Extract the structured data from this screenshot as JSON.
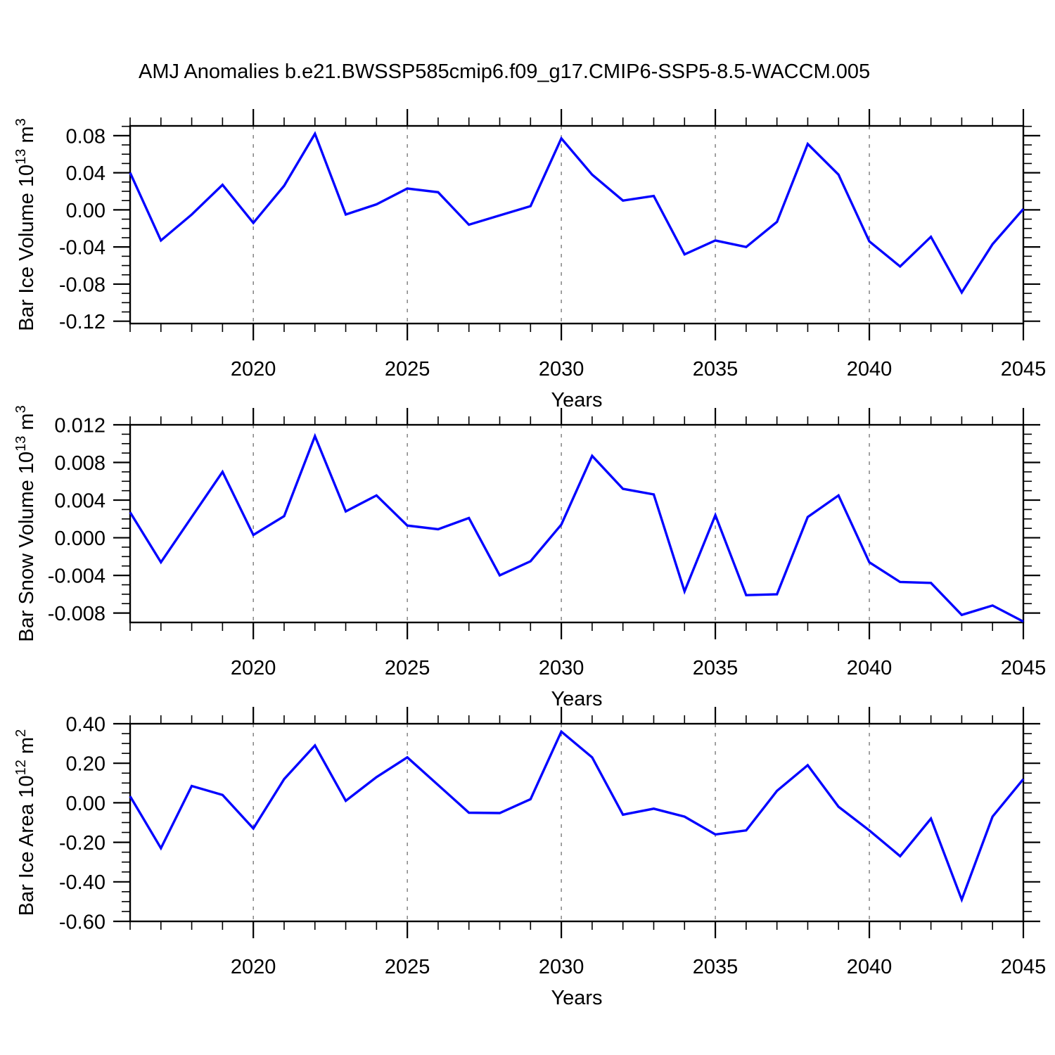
{
  "title": "AMJ Anomalies b.e21.BWSSP585cmip6.f09_g17.CMIP6-SSP5-8.5-WACCM.005",
  "colors": {
    "line": "#0404ff",
    "frame": "#000000",
    "grid": "#707070",
    "background": "#ffffff"
  },
  "chart_data": [
    {
      "type": "line",
      "id": "ice-volume",
      "ylabel_parts": [
        {
          "t": "Bar Ice Volume 10",
          "sup": false
        },
        {
          "t": "13",
          "sup": true
        },
        {
          "t": " m",
          "sup": false
        },
        {
          "t": "3",
          "sup": true
        }
      ],
      "xlabel": "Years",
      "x": [
        2016,
        2017,
        2018,
        2019,
        2020,
        2021,
        2022,
        2023,
        2024,
        2025,
        2026,
        2027,
        2028,
        2029,
        2030,
        2031,
        2032,
        2033,
        2034,
        2035,
        2036,
        2037,
        2038,
        2039,
        2040,
        2041,
        2042,
        2043,
        2044,
        2045
      ],
      "values": [
        0.04,
        -0.033,
        -0.005,
        0.027,
        -0.014,
        0.026,
        0.082,
        -0.005,
        0.006,
        0.023,
        0.019,
        -0.016,
        -0.006,
        0.004,
        0.077,
        0.038,
        0.01,
        0.015,
        -0.048,
        -0.033,
        -0.04,
        -0.013,
        0.071,
        0.038,
        -0.034,
        -0.061,
        -0.029,
        -0.089,
        -0.037,
        0.001
      ],
      "xlim": [
        2016,
        2045
      ],
      "ylim": [
        -0.1225,
        0.0905
      ],
      "xticks": [
        {
          "v": 2020,
          "label": "2020"
        },
        {
          "v": 2025,
          "label": "2025"
        },
        {
          "v": 2030,
          "label": "2030"
        },
        {
          "v": 2035,
          "label": "2035"
        },
        {
          "v": 2040,
          "label": "2040"
        },
        {
          "v": 2045,
          "label": "2045"
        }
      ],
      "xticks_minor_step": 1,
      "yticks": [
        {
          "v": 0.08,
          "label": "0.08"
        },
        {
          "v": 0.04,
          "label": "0.04"
        },
        {
          "v": 0.0,
          "label": "0.00"
        },
        {
          "v": -0.04,
          "label": "-0.04"
        },
        {
          "v": -0.08,
          "label": "-0.08"
        },
        {
          "v": -0.12,
          "label": "-0.12"
        }
      ],
      "yticks_minor": [
        -0.11,
        -0.1,
        -0.09,
        -0.07,
        -0.06,
        -0.05,
        -0.03,
        -0.02,
        -0.01,
        0.01,
        0.02,
        0.03,
        0.05,
        0.06,
        0.07,
        0.09
      ],
      "grid_x": [
        2020,
        2025,
        2030,
        2035,
        2040
      ],
      "grid_on": true,
      "legend_position": "none"
    },
    {
      "type": "line",
      "id": "snow-volume",
      "ylabel_parts": [
        {
          "t": "Bar Snow Volume 10",
          "sup": false
        },
        {
          "t": "13",
          "sup": true
        },
        {
          "t": " m",
          "sup": false
        },
        {
          "t": "3",
          "sup": true
        }
      ],
      "xlabel": "Years",
      "x": [
        2016,
        2017,
        2018,
        2019,
        2020,
        2021,
        2022,
        2023,
        2024,
        2025,
        2026,
        2027,
        2028,
        2029,
        2030,
        2031,
        2032,
        2033,
        2034,
        2035,
        2036,
        2037,
        2038,
        2039,
        2040,
        2041,
        2042,
        2043,
        2044,
        2045
      ],
      "values": [
        0.0027,
        -0.0026,
        0.0022,
        0.007,
        0.0003,
        0.0023,
        0.0108,
        0.0028,
        0.0045,
        0.0013,
        0.0009,
        0.0021,
        -0.004,
        -0.0025,
        0.0014,
        0.0087,
        0.0052,
        0.0046,
        -0.0057,
        0.0024,
        -0.0061,
        -0.006,
        0.0022,
        0.0045,
        -0.0026,
        -0.0047,
        -0.0048,
        -0.0082,
        -0.0072,
        -0.0089
      ],
      "xlim": [
        2016,
        2045
      ],
      "ylim": [
        -0.009,
        0.012
      ],
      "xticks": [
        {
          "v": 2020,
          "label": "2020"
        },
        {
          "v": 2025,
          "label": "2025"
        },
        {
          "v": 2030,
          "label": "2030"
        },
        {
          "v": 2035,
          "label": "2035"
        },
        {
          "v": 2040,
          "label": "2040"
        },
        {
          "v": 2045,
          "label": "2045"
        }
      ],
      "xticks_minor_step": 1,
      "yticks": [
        {
          "v": 0.012,
          "label": "0.012"
        },
        {
          "v": 0.008,
          "label": "0.008"
        },
        {
          "v": 0.004,
          "label": "0.004"
        },
        {
          "v": 0.0,
          "label": "0.000"
        },
        {
          "v": -0.004,
          "label": "-0.004"
        },
        {
          "v": -0.008,
          "label": "-0.008"
        }
      ],
      "yticks_minor": [
        -0.007,
        -0.006,
        -0.005,
        -0.003,
        -0.002,
        -0.001,
        0.001,
        0.002,
        0.003,
        0.005,
        0.006,
        0.007,
        0.009,
        0.01,
        0.011
      ],
      "grid_x": [
        2020,
        2025,
        2030,
        2035,
        2040
      ],
      "grid_on": true,
      "legend_position": "none"
    },
    {
      "type": "line",
      "id": "ice-area",
      "ylabel_parts": [
        {
          "t": "Bar Ice Area 10",
          "sup": false
        },
        {
          "t": "12",
          "sup": true
        },
        {
          "t": " m",
          "sup": false
        },
        {
          "t": "2",
          "sup": true
        }
      ],
      "xlabel": "Years",
      "x": [
        2016,
        2017,
        2018,
        2019,
        2020,
        2021,
        2022,
        2023,
        2024,
        2025,
        2026,
        2027,
        2028,
        2029,
        2030,
        2031,
        2032,
        2033,
        2034,
        2035,
        2036,
        2037,
        2038,
        2039,
        2040,
        2041,
        2042,
        2043,
        2044,
        2045
      ],
      "values": [
        0.033,
        -0.23,
        0.085,
        0.04,
        -0.13,
        0.12,
        0.29,
        0.01,
        0.13,
        0.23,
        0.09,
        -0.05,
        -0.052,
        0.018,
        0.36,
        0.23,
        -0.06,
        -0.03,
        -0.07,
        -0.16,
        -0.14,
        0.06,
        0.19,
        -0.02,
        -0.14,
        -0.27,
        -0.08,
        -0.49,
        -0.07,
        0.12
      ],
      "xlim": [
        2016,
        2045
      ],
      "ylim": [
        -0.6,
        0.4
      ],
      "xticks": [
        {
          "v": 2020,
          "label": "2020"
        },
        {
          "v": 2025,
          "label": "2025"
        },
        {
          "v": 2030,
          "label": "2030"
        },
        {
          "v": 2035,
          "label": "2035"
        },
        {
          "v": 2040,
          "label": "2040"
        },
        {
          "v": 2045,
          "label": "2045"
        }
      ],
      "xticks_minor_step": 1,
      "yticks": [
        {
          "v": 0.4,
          "label": "0.40"
        },
        {
          "v": 0.2,
          "label": "0.20"
        },
        {
          "v": 0.0,
          "label": "0.00"
        },
        {
          "v": -0.2,
          "label": "-0.20"
        },
        {
          "v": -0.4,
          "label": "-0.40"
        },
        {
          "v": -0.6,
          "label": "-0.60"
        }
      ],
      "yticks_minor": [
        -0.55,
        -0.5,
        -0.45,
        -0.35,
        -0.3,
        -0.25,
        -0.15,
        -0.1,
        -0.05,
        0.05,
        0.1,
        0.15,
        0.25,
        0.3,
        0.35
      ],
      "grid_x": [
        2020,
        2025,
        2030,
        2035,
        2040
      ],
      "grid_on": true,
      "legend_position": "none"
    }
  ]
}
